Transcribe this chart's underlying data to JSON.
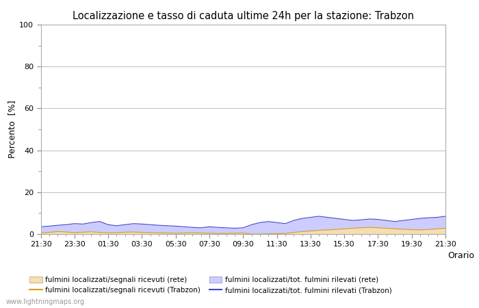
{
  "title": "Localizzazione e tasso di caduta ultime 24h per la stazione: Trabzon",
  "ylabel": "Percento  [%]",
  "xlim": [
    0,
    48
  ],
  "ylim": [
    0,
    100
  ],
  "yticks": [
    0,
    20,
    40,
    60,
    80,
    100
  ],
  "yticks_minor": [
    10,
    30,
    50,
    70,
    90
  ],
  "xtick_labels": [
    "21:30",
    "23:30",
    "01:30",
    "03:30",
    "05:30",
    "07:30",
    "09:30",
    "11:30",
    "13:30",
    "15:30",
    "17:30",
    "19:30",
    "21:30"
  ],
  "xtick_positions": [
    0,
    4,
    8,
    12,
    16,
    20,
    24,
    28,
    32,
    36,
    40,
    44,
    48
  ],
  "fill_rete_color": "#f5deb3",
  "fill_trabzon_color": "#ccccff",
  "line_rete_color": "#d4a017",
  "line_trabzon_color": "#4444cc",
  "background_color": "#ffffff",
  "plot_bg_color": "#ffffff",
  "grid_color": "#c0c0c0",
  "watermark": "www.lightningmaps.org",
  "leg0": "fulmini localizzati/segnali ricevuti (rete)",
  "leg1": "fulmini localizzati/segnali ricevuti (Trabzon)",
  "leg2": "fulmini localizzati/tot. fulmini rilevati (rete)",
  "leg3": "fulmini localizzati/tot. fulmini rilevati (Trabzon)",
  "fill_rete_data": [
    0.5,
    0.8,
    1.2,
    1.0,
    0.7,
    0.9,
    1.1,
    0.8,
    0.6,
    0.7,
    0.9,
    1.0,
    0.8,
    0.7,
    0.6,
    0.5,
    0.4,
    0.5,
    0.6,
    0.5,
    0.4,
    0.3,
    0.3,
    0.4,
    0.5,
    0.0,
    0.0,
    0.1,
    0.2,
    0.3,
    0.8,
    1.2,
    1.5,
    1.8,
    2.0,
    2.2,
    2.5,
    2.8,
    3.0,
    3.2,
    3.0,
    2.8,
    2.5,
    2.3,
    2.1,
    2.0,
    2.2,
    2.5,
    2.8
  ],
  "fill_trabzon_data": [
    3.5,
    3.8,
    4.2,
    4.5,
    5.0,
    4.8,
    5.5,
    6.0,
    4.5,
    4.0,
    4.5,
    5.0,
    4.8,
    4.5,
    4.2,
    4.0,
    3.8,
    3.5,
    3.2,
    3.0,
    3.5,
    3.2,
    3.0,
    2.8,
    3.0,
    4.5,
    5.5,
    6.0,
    5.5,
    5.0,
    6.5,
    7.5,
    8.0,
    8.5,
    8.0,
    7.5,
    7.0,
    6.5,
    6.8,
    7.2,
    7.0,
    6.5,
    6.0,
    6.5,
    7.0,
    7.5,
    7.8,
    8.0,
    8.5
  ]
}
